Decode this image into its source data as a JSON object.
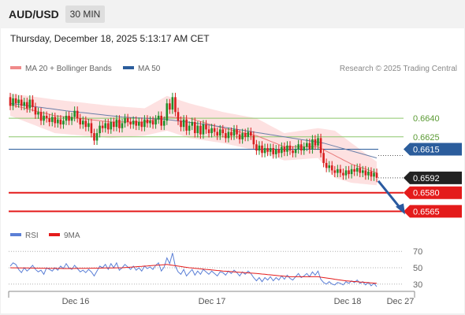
{
  "header": {
    "symbol": "AUD/USD",
    "timeframe": "30 MIN"
  },
  "datetime": "Thursday, December 18, 2025 5:13:17 AM CET",
  "legend": [
    {
      "label": "MA 20 + Bollinger Bands",
      "color": "#f08a8a"
    },
    {
      "label": "MA 50",
      "color": "#2b5d9c"
    }
  ],
  "credit": "Research © 2025 Trading Central",
  "colors": {
    "up_candle": "#1f8f2a",
    "down_candle": "#d81e1e",
    "band_fill": "#fde1e1",
    "ma20": "#e87a7a",
    "ma50": "#6a7fa8",
    "green_level": "#8cc76b",
    "blue_level": "#2b5d9c",
    "red_level": "#e41b1b",
    "current_tag": "#222222",
    "rsi": "#5b7fd6",
    "rsi_ma": "#e41b1b",
    "arrow": "#2a5aa0"
  },
  "chart_data": [
    {
      "type": "candlestick",
      "y_range": [
        0.6557,
        0.6668
      ],
      "levels": [
        {
          "value": 0.664,
          "label": "0.6640",
          "style": "green-line"
        },
        {
          "value": 0.6625,
          "label": "0.6625",
          "style": "green-line"
        },
        {
          "value": 0.6615,
          "label": "0.6615",
          "style": "blue-tag"
        },
        {
          "value": 0.6592,
          "label": "0.6592",
          "style": "current-price-tag"
        },
        {
          "value": 0.658,
          "label": "0.6580",
          "style": "red-tag"
        },
        {
          "value": 0.6565,
          "label": "0.6565",
          "style": "red-tag"
        }
      ],
      "x_tick_labels": [
        "Dec 16",
        "Dec 17",
        "Dec 18",
        "Dec 27"
      ],
      "candles": [
        [
          0.6657,
          0.665
        ],
        [
          0.665,
          0.6656
        ],
        [
          0.6656,
          0.6652
        ],
        [
          0.6652,
          0.6655
        ],
        [
          0.6655,
          0.665
        ],
        [
          0.665,
          0.6653
        ],
        [
          0.6653,
          0.6648
        ],
        [
          0.6648,
          0.6655
        ],
        [
          0.6655,
          0.6649
        ],
        [
          0.6649,
          0.6643
        ],
        [
          0.6643,
          0.6645
        ],
        [
          0.6645,
          0.6638
        ],
        [
          0.6638,
          0.6642
        ],
        [
          0.6642,
          0.664
        ],
        [
          0.664,
          0.6637
        ],
        [
          0.6637,
          0.6641
        ],
        [
          0.6641,
          0.6636
        ],
        [
          0.6636,
          0.6639
        ],
        [
          0.6639,
          0.6635
        ],
        [
          0.6635,
          0.6638
        ],
        [
          0.6638,
          0.6642
        ],
        [
          0.6642,
          0.6638
        ],
        [
          0.6638,
          0.6641
        ],
        [
          0.6641,
          0.6646
        ],
        [
          0.6646,
          0.664
        ],
        [
          0.664,
          0.6635
        ],
        [
          0.6635,
          0.6638
        ],
        [
          0.6638,
          0.6633
        ],
        [
          0.6633,
          0.6636
        ],
        [
          0.6636,
          0.6628
        ],
        [
          0.6628,
          0.6622
        ],
        [
          0.6622,
          0.6628
        ],
        [
          0.6628,
          0.6634
        ],
        [
          0.6634,
          0.6632
        ],
        [
          0.6632,
          0.6636
        ],
        [
          0.6636,
          0.6631
        ],
        [
          0.6631,
          0.6637
        ],
        [
          0.6637,
          0.6633
        ],
        [
          0.6633,
          0.6639
        ],
        [
          0.6639,
          0.6632
        ],
        [
          0.6632,
          0.6636
        ],
        [
          0.6636,
          0.664
        ],
        [
          0.664,
          0.6637
        ],
        [
          0.6637,
          0.6635
        ],
        [
          0.6635,
          0.6638
        ],
        [
          0.6638,
          0.6634
        ],
        [
          0.6634,
          0.6637
        ],
        [
          0.6637,
          0.6633
        ],
        [
          0.6633,
          0.6639
        ],
        [
          0.6639,
          0.6636
        ],
        [
          0.6636,
          0.6638
        ],
        [
          0.6638,
          0.6635
        ],
        [
          0.6635,
          0.6639
        ],
        [
          0.6639,
          0.6642
        ],
        [
          0.6642,
          0.6634
        ],
        [
          0.6634,
          0.6638
        ],
        [
          0.6638,
          0.6652
        ],
        [
          0.6652,
          0.6647
        ],
        [
          0.6647,
          0.6657
        ],
        [
          0.6657,
          0.6645
        ],
        [
          0.6645,
          0.6638
        ],
        [
          0.6638,
          0.6633
        ],
        [
          0.6633,
          0.6639
        ],
        [
          0.6639,
          0.663
        ],
        [
          0.663,
          0.6634
        ],
        [
          0.6634,
          0.6637
        ],
        [
          0.6637,
          0.6628
        ],
        [
          0.6628,
          0.6634
        ],
        [
          0.6634,
          0.6627
        ],
        [
          0.6627,
          0.6635
        ],
        [
          0.6635,
          0.6631
        ],
        [
          0.6631,
          0.6628
        ],
        [
          0.6628,
          0.6632
        ],
        [
          0.6632,
          0.6629
        ],
        [
          0.6629,
          0.6626
        ],
        [
          0.6626,
          0.6631
        ],
        [
          0.6631,
          0.6628
        ],
        [
          0.6628,
          0.6624
        ],
        [
          0.6624,
          0.6629
        ],
        [
          0.6629,
          0.6626
        ],
        [
          0.6626,
          0.6631
        ],
        [
          0.6631,
          0.6627
        ],
        [
          0.6627,
          0.6623
        ],
        [
          0.6623,
          0.6628
        ],
        [
          0.6628,
          0.6625
        ],
        [
          0.6625,
          0.6629
        ],
        [
          0.6629,
          0.6626
        ],
        [
          0.6626,
          0.6619
        ],
        [
          0.6619,
          0.6614
        ],
        [
          0.6614,
          0.6618
        ],
        [
          0.6618,
          0.6612
        ],
        [
          0.6612,
          0.6616
        ],
        [
          0.6616,
          0.6613
        ],
        [
          0.6613,
          0.6616
        ],
        [
          0.6616,
          0.6611
        ],
        [
          0.6611,
          0.6615
        ],
        [
          0.6615,
          0.6612
        ],
        [
          0.6612,
          0.6617
        ],
        [
          0.6617,
          0.6613
        ],
        [
          0.6613,
          0.6618
        ],
        [
          0.6618,
          0.6614
        ],
        [
          0.6614,
          0.6612
        ],
        [
          0.6612,
          0.6615
        ],
        [
          0.6615,
          0.6619
        ],
        [
          0.6619,
          0.6614
        ],
        [
          0.6614,
          0.6617
        ],
        [
          0.6617,
          0.662
        ],
        [
          0.662,
          0.6615
        ],
        [
          0.6615,
          0.6623
        ],
        [
          0.6623,
          0.6618
        ],
        [
          0.6618,
          0.6624
        ],
        [
          0.6624,
          0.6612
        ],
        [
          0.6612,
          0.6604
        ],
        [
          0.6604,
          0.66
        ],
        [
          0.66,
          0.6602
        ],
        [
          0.6602,
          0.6598
        ],
        [
          0.6598,
          0.6596
        ],
        [
          0.6596,
          0.6599
        ],
        [
          0.6599,
          0.6596
        ],
        [
          0.6596,
          0.6594
        ],
        [
          0.6594,
          0.6598
        ],
        [
          0.6598,
          0.6595
        ],
        [
          0.6595,
          0.6599
        ],
        [
          0.6599,
          0.6597
        ],
        [
          0.6597,
          0.66
        ],
        [
          0.66,
          0.6596
        ],
        [
          0.6596,
          0.6598
        ],
        [
          0.6598,
          0.6594
        ],
        [
          0.6594,
          0.6597
        ],
        [
          0.6597,
          0.6593
        ],
        [
          0.6593,
          0.6596
        ],
        [
          0.6596,
          0.6592
        ]
      ],
      "bollinger_upper": [
        [
          0,
          0.666
        ],
        [
          16,
          0.6655
        ],
        [
          36,
          0.665
        ],
        [
          48,
          0.6648
        ],
        [
          56,
          0.6658
        ],
        [
          64,
          0.6652
        ],
        [
          76,
          0.6645
        ],
        [
          88,
          0.664
        ],
        [
          98,
          0.6628
        ],
        [
          110,
          0.6632
        ],
        [
          116,
          0.663
        ],
        [
          122,
          0.662
        ],
        [
          131,
          0.6605
        ]
      ],
      "bollinger_lower": [
        [
          0,
          0.6642
        ],
        [
          16,
          0.6628
        ],
        [
          36,
          0.6624
        ],
        [
          48,
          0.6626
        ],
        [
          56,
          0.663
        ],
        [
          64,
          0.6624
        ],
        [
          76,
          0.662
        ],
        [
          88,
          0.6614
        ],
        [
          98,
          0.6606
        ],
        [
          110,
          0.6608
        ],
        [
          116,
          0.6592
        ],
        [
          122,
          0.6588
        ],
        [
          131,
          0.6586
        ]
      ],
      "ma20": [
        [
          0,
          0.6651
        ],
        [
          16,
          0.6642
        ],
        [
          36,
          0.6637
        ],
        [
          48,
          0.6637
        ],
        [
          56,
          0.6641
        ],
        [
          64,
          0.664
        ],
        [
          76,
          0.6632
        ],
        [
          88,
          0.6626
        ],
        [
          98,
          0.6617
        ],
        [
          110,
          0.6617
        ],
        [
          116,
          0.661
        ],
        [
          122,
          0.6603
        ],
        [
          131,
          0.6596
        ]
      ],
      "ma50": [
        [
          0,
          0.6652
        ],
        [
          20,
          0.6646
        ],
        [
          40,
          0.6641
        ],
        [
          56,
          0.6639
        ],
        [
          70,
          0.6635
        ],
        [
          84,
          0.663
        ],
        [
          98,
          0.6625
        ],
        [
          112,
          0.662
        ],
        [
          131,
          0.6608
        ]
      ],
      "forecast_arrow": {
        "from": 0.6592,
        "to": 0.6565
      }
    },
    {
      "type": "line",
      "legend": [
        {
          "label": "RSI",
          "color": "#5b7fd6"
        },
        {
          "label": "9MA",
          "color": "#e41b1b"
        }
      ],
      "y_range": [
        25,
        75
      ],
      "y_ticks": [
        {
          "value": 70,
          "label": "70"
        },
        {
          "value": 50,
          "label": "50"
        },
        {
          "value": 30,
          "label": "30"
        }
      ],
      "rsi": [
        52,
        56,
        54,
        48,
        44,
        50,
        46,
        49,
        53,
        48,
        45,
        47,
        42,
        50,
        48,
        46,
        50,
        47,
        52,
        49,
        55,
        50,
        48,
        53,
        49,
        45,
        47,
        44,
        48,
        45,
        40,
        46,
        52,
        50,
        54,
        48,
        55,
        50,
        56,
        47,
        50,
        54,
        51,
        48,
        52,
        47,
        50,
        46,
        52,
        49,
        51,
        48,
        53,
        56,
        46,
        51,
        62,
        55,
        68,
        52,
        45,
        42,
        48,
        40,
        44,
        48,
        41,
        46,
        42,
        48,
        45,
        42,
        46,
        43,
        40,
        45,
        44,
        41,
        46,
        43,
        47,
        44,
        40,
        45,
        42,
        46,
        43,
        38,
        34,
        38,
        33,
        38,
        35,
        39,
        34,
        38,
        35,
        40,
        36,
        41,
        37,
        35,
        39,
        43,
        38,
        40,
        43,
        39,
        45,
        41,
        46,
        36,
        32,
        30,
        33,
        30,
        29,
        32,
        31,
        29,
        33,
        31,
        34,
        32,
        35,
        31,
        33,
        29,
        32,
        28,
        31,
        27
      ],
      "rsi_ma": [
        [
          0,
          50
        ],
        [
          20,
          49
        ],
        [
          40,
          50
        ],
        [
          56,
          54
        ],
        [
          64,
          50
        ],
        [
          76,
          46
        ],
        [
          88,
          43
        ],
        [
          100,
          39
        ],
        [
          110,
          39
        ],
        [
          120,
          34
        ],
        [
          131,
          31
        ]
      ]
    }
  ]
}
